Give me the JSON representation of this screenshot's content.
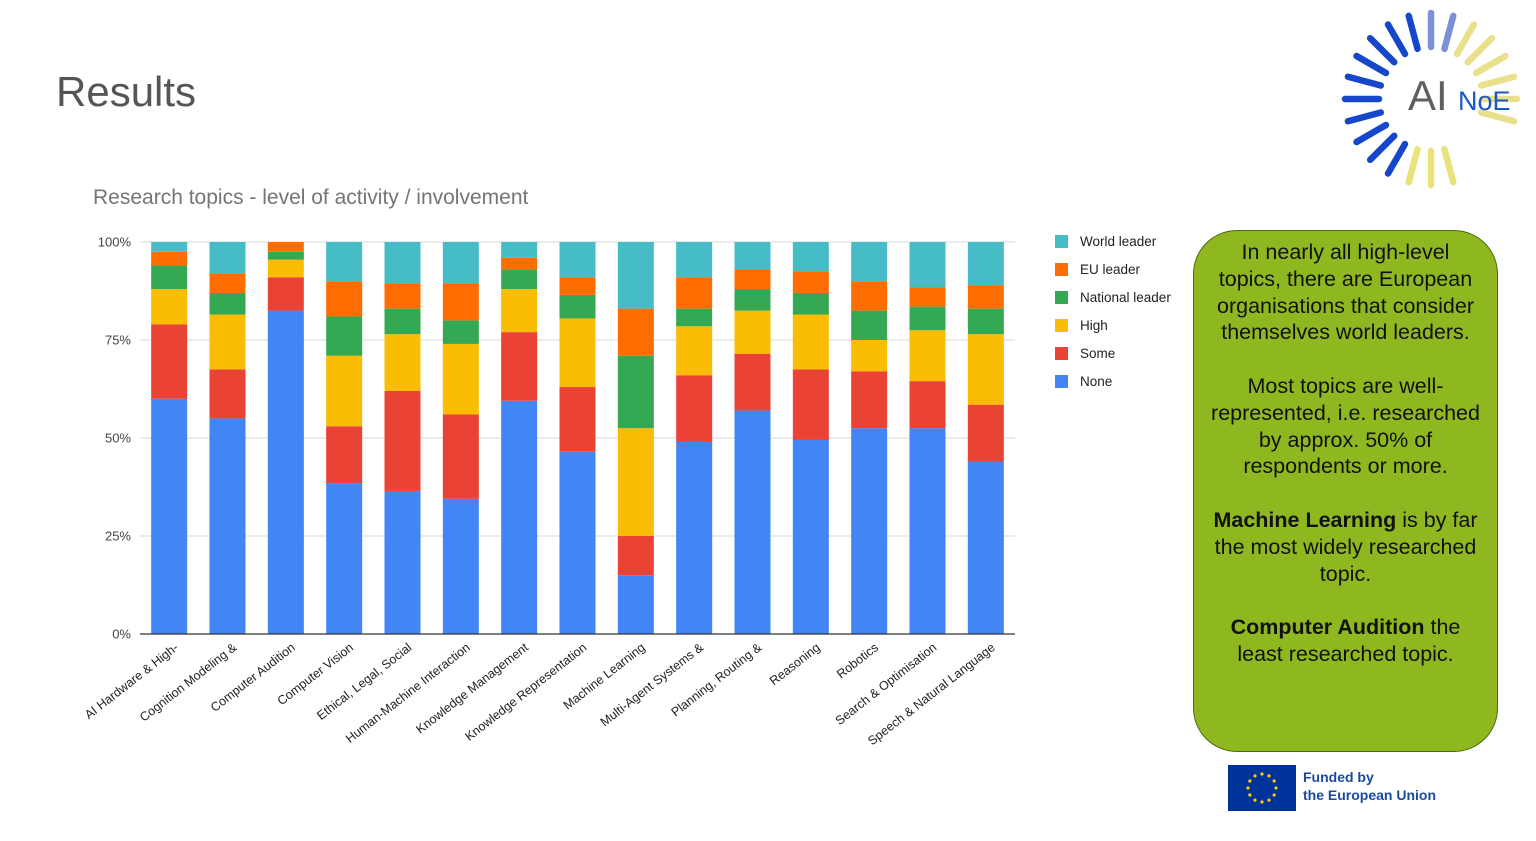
{
  "slide": {
    "title": "Results"
  },
  "logo": {
    "text_ai": "AI",
    "text_noe": "NoE"
  },
  "note": {
    "p1": "In nearly all high-level topics, there are European organisations that consider themselves world leaders.",
    "p2": "Most topics are well-represented, i.e. researched by approx. 50% of respondents or more.",
    "p3_bold": "Machine Learning",
    "p3_rest": " is by far the most widely researched topic.",
    "p4_bold": "Computer Audition",
    "p4_rest": " the least researched topic."
  },
  "funding": {
    "line1": "Funded by",
    "line2": "the European Union"
  },
  "colors": {
    "None": "#4285f4",
    "Some": "#ea4335",
    "High": "#fbbc04",
    "National leader": "#34a853",
    "EU leader": "#ff6d01",
    "World leader": "#46bdc6"
  },
  "chart_data": {
    "type": "bar",
    "stacked": true,
    "title": "Research topics - level of activity / involvement",
    "xlabel": "",
    "ylabel": "",
    "ylim": [
      0,
      100
    ],
    "yticks": [
      "0%",
      "25%",
      "50%",
      "75%",
      "100%"
    ],
    "grid": true,
    "legend_position": "right",
    "categories": [
      "AI Hardware & High-",
      "Cognition Modeling &",
      "Computer Audition",
      "Computer Vision",
      "Ethical, Legal, Social",
      "Human-Machine Interaction",
      "Knowledge Management",
      "Knowledge Representation",
      "Machine Learning",
      "Multi-Agent Systems &",
      "Planning, Routing &",
      "Reasoning",
      "Robotics",
      "Search & Optimisation",
      "Speech & Natural Language"
    ],
    "series": [
      {
        "name": "None",
        "values": [
          60,
          55,
          82.5,
          38.5,
          36.5,
          34.5,
          59.5,
          46.5,
          15,
          49,
          57,
          49.5,
          52.5,
          52.5,
          44
        ]
      },
      {
        "name": "Some",
        "values": [
          19,
          12.5,
          8.5,
          14.5,
          25.5,
          21.5,
          17.5,
          16.5,
          10,
          17,
          14.5,
          18,
          14.5,
          12,
          14.5
        ]
      },
      {
        "name": "High",
        "values": [
          9,
          14,
          4.5,
          18,
          14.5,
          18,
          11,
          17.5,
          27.5,
          12.5,
          11,
          14,
          8,
          13,
          18
        ]
      },
      {
        "name": "National leader",
        "values": [
          6,
          5.5,
          2,
          10,
          6.5,
          6,
          5,
          6,
          18.5,
          4.5,
          5.5,
          5.5,
          7.5,
          6,
          6.5
        ]
      },
      {
        "name": "EU leader",
        "values": [
          3.5,
          5,
          2.5,
          9,
          6.5,
          9.5,
          3,
          4.5,
          12,
          8,
          5,
          5.5,
          7.5,
          5,
          6
        ]
      },
      {
        "name": "World leader",
        "values": [
          2.5,
          8,
          0,
          10,
          10.5,
          10.5,
          4,
          9,
          17,
          9,
          7,
          7.5,
          10,
          11.5,
          11
        ]
      }
    ]
  }
}
